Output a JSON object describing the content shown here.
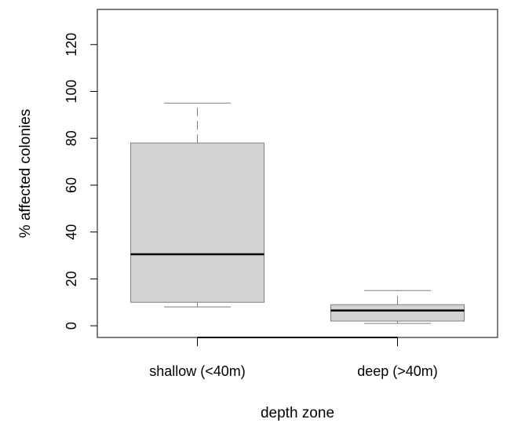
{
  "chart_data": {
    "type": "boxplot",
    "title": "",
    "xlabel": "depth zone",
    "ylabel": "% affected colonies",
    "ylim": [
      -5,
      135
    ],
    "yticks": [
      0,
      20,
      40,
      60,
      80,
      100,
      120
    ],
    "ytick_labels": [
      "0",
      "20",
      "40",
      "60",
      "80",
      "100",
      "120"
    ],
    "grid": false,
    "categories": [
      "shallow (<40m)",
      "deep (>40m)"
    ],
    "boxes": [
      {
        "category": "shallow (<40m)",
        "min": 8,
        "q1": 10,
        "median": 30.5,
        "q3": 78,
        "max": 95
      },
      {
        "category": "deep (>40m)",
        "min": 1,
        "q1": 2,
        "median": 6.5,
        "q3": 9,
        "max": 15
      }
    ],
    "colors": {
      "box_fill": "#d3d3d3",
      "stroke": "#000000",
      "whisker": "#808080"
    }
  }
}
